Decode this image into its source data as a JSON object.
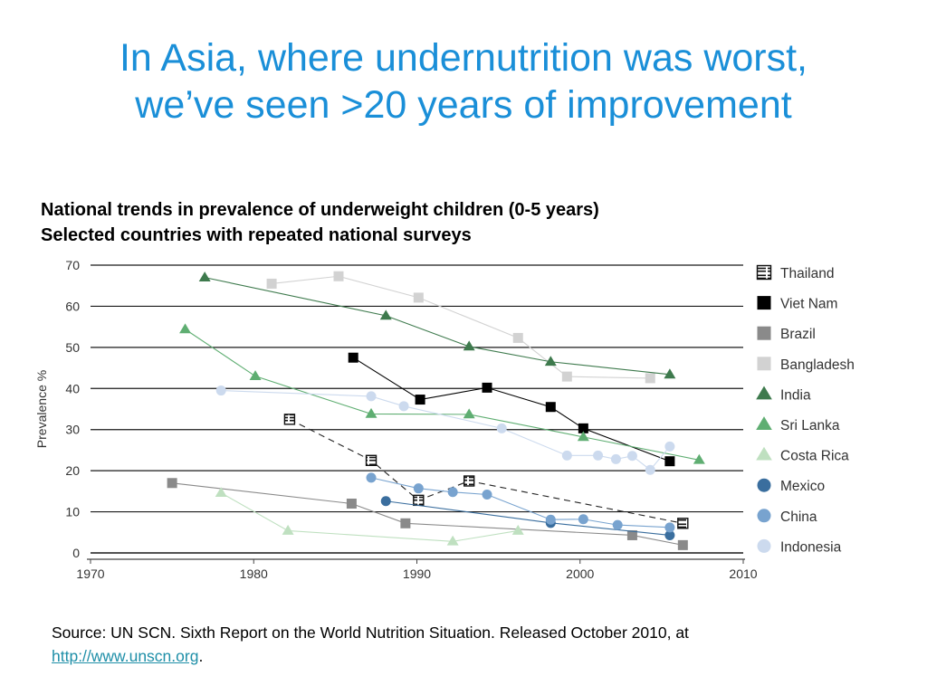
{
  "slide": {
    "title_line1": "In Asia, where undernutrition was worst,",
    "title_line2": "we’ve seen >20 years of improvement",
    "source_text": "Source: UN SCN. Sixth Report on the World Nutrition Situation. Released October 2010, at",
    "source_link": "http://www.unscn.org",
    "source_end": "."
  },
  "chart_data": {
    "type": "line",
    "title": "National trends in prevalence of underweight children (0-5 years)",
    "subtitle": "Selected countries with repeated national surveys",
    "xlabel": "",
    "ylabel": "Prevalence %",
    "xlim": [
      1970,
      2010
    ],
    "ylim": [
      0,
      70
    ],
    "xticks": [
      1970,
      1980,
      1990,
      2000,
      2010
    ],
    "yticks": [
      0,
      10,
      20,
      30,
      40,
      50,
      60,
      70
    ],
    "grid": "horizontal",
    "legend_position": "right",
    "series": [
      {
        "name": "Thailand",
        "marker": "square-hatched",
        "color": "#111111",
        "dashed": true,
        "x": [
          1982.2,
          1987.2,
          1990.1,
          1993.2,
          2006.3
        ],
        "y": [
          32.5,
          22.5,
          12.8,
          17.5,
          7.2
        ]
      },
      {
        "name": "Viet Nam",
        "marker": "square",
        "color": "#000000",
        "x": [
          1986.1,
          1990.2,
          1994.3,
          1998.2,
          2000.2,
          2005.5
        ],
        "y": [
          47.5,
          37.3,
          40.2,
          35.5,
          30.3,
          22.3
        ]
      },
      {
        "name": "Brazil",
        "marker": "square",
        "color": "#8a8a8a",
        "x": [
          1975.0,
          1986.0,
          1989.3,
          2003.2,
          2006.3
        ],
        "y": [
          17.0,
          12.0,
          7.2,
          4.3,
          1.9
        ]
      },
      {
        "name": "Bangladesh",
        "marker": "square",
        "color": "#d2d2d2",
        "x": [
          1981.1,
          1985.2,
          1990.1,
          1996.2,
          1999.2,
          2004.3
        ],
        "y": [
          65.5,
          67.3,
          62.1,
          52.3,
          42.9,
          42.5
        ]
      },
      {
        "name": "India",
        "marker": "triangle",
        "color": "#3e7a4d",
        "x": [
          1977.0,
          1988.1,
          1993.2,
          1998.2,
          2005.5
        ],
        "y": [
          67.0,
          57.7,
          50.2,
          46.5,
          43.4
        ]
      },
      {
        "name": "Sri Lanka",
        "marker": "triangle",
        "color": "#5fae72",
        "x": [
          1975.8,
          1980.1,
          1987.2,
          1993.2,
          2000.2,
          2007.3
        ],
        "y": [
          54.4,
          43.0,
          33.8,
          33.7,
          28.2,
          22.6
        ]
      },
      {
        "name": "Costa Rica",
        "marker": "triangle",
        "color": "#bfe0c0",
        "x": [
          1978.0,
          1982.1,
          1992.2,
          1996.2
        ],
        "y": [
          14.6,
          5.4,
          2.8,
          5.4
        ]
      },
      {
        "name": "Mexico",
        "marker": "circle",
        "color": "#3a6e9e",
        "x": [
          1988.1,
          1998.2,
          2005.5
        ],
        "y": [
          12.6,
          7.3,
          4.3
        ]
      },
      {
        "name": "China",
        "marker": "circle",
        "color": "#78a3cf",
        "x": [
          1987.2,
          1990.1,
          1992.2,
          1994.3,
          1998.2,
          2000.2,
          2002.3,
          2005.5
        ],
        "y": [
          18.3,
          15.7,
          14.8,
          14.2,
          8.1,
          8.2,
          6.8,
          6.2
        ]
      },
      {
        "name": "Indonesia",
        "marker": "circle",
        "color": "#ccdaee",
        "x": [
          1978.0,
          1987.2,
          1989.2,
          1995.2,
          1999.2,
          2001.1,
          2002.2,
          2003.2,
          2004.3,
          2005.5
        ],
        "y": [
          39.5,
          38.1,
          35.7,
          30.3,
          23.7,
          23.7,
          22.8,
          23.6,
          20.2,
          25.9
        ]
      }
    ]
  }
}
